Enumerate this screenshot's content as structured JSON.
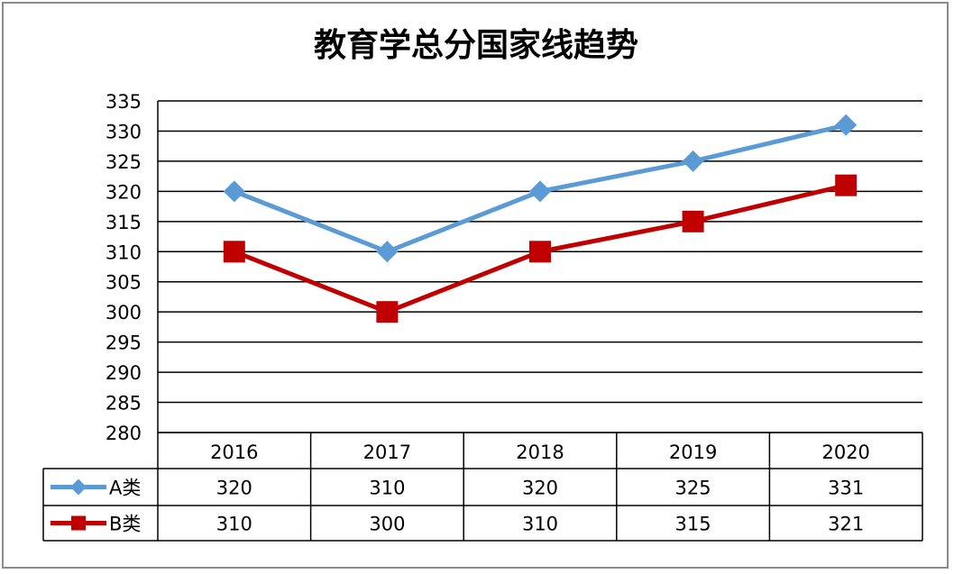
{
  "chart_data": {
    "type": "line",
    "title": "教育学总分国家线趋势",
    "categories": [
      "2016",
      "2017",
      "2018",
      "2019",
      "2020"
    ],
    "series": [
      {
        "name": "A类",
        "values": [
          320,
          310,
          320,
          325,
          331
        ],
        "color": "#5b9bd5",
        "marker": "diamond"
      },
      {
        "name": "B类",
        "values": [
          310,
          300,
          310,
          315,
          321
        ],
        "color": "#c00000",
        "marker": "square"
      }
    ],
    "yticks": [
      "335",
      "330",
      "325",
      "320",
      "315",
      "310",
      "305",
      "300",
      "295",
      "290",
      "285",
      "280"
    ],
    "ylim": [
      280,
      335
    ],
    "xlabel": "",
    "ylabel": "",
    "grid": true,
    "legend": "data-table"
  }
}
